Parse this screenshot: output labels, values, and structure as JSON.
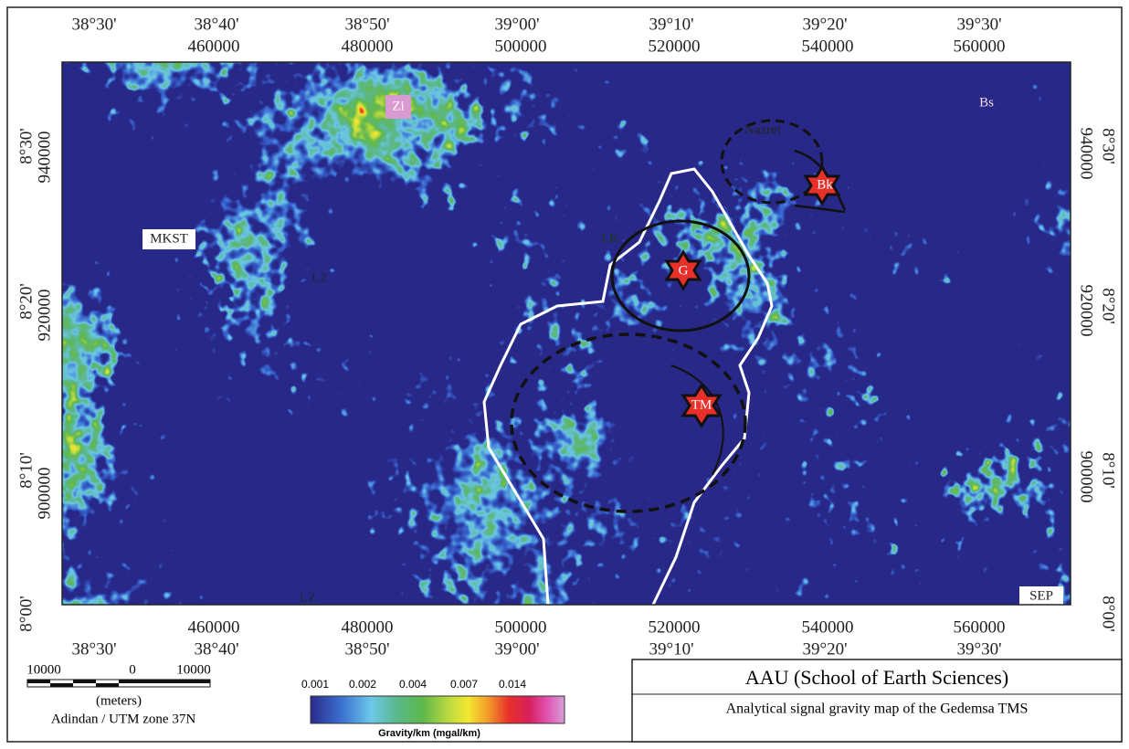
{
  "graticule": {
    "top_degrees": [
      "38°30'",
      "38°40'",
      "38°50'",
      "39°00'",
      "39°10'",
      "39°20'",
      "39°30'"
    ],
    "top_utm": [
      "460000",
      "480000",
      "500000",
      "520000",
      "540000",
      "560000"
    ],
    "bottom_utm": [
      "460000",
      "480000",
      "500000",
      "520000",
      "540000",
      "560000"
    ],
    "bottom_degrees": [
      "38°30'",
      "38°40'",
      "38°50'",
      "39°00'",
      "39°10'",
      "39°20'",
      "39°30'"
    ],
    "left": [
      "8°30'",
      "940000",
      "8°20'",
      "920000",
      "8°10'",
      "900000",
      "8°00'"
    ],
    "right": [
      "940000",
      "8°30'",
      "920000",
      "8°20'",
      "900000",
      "8°10'",
      "8°00'"
    ]
  },
  "map_labels": [
    "Zi",
    "Bs",
    "Nazret",
    "Bk",
    "MKST",
    "LK",
    "G",
    "LZ",
    "TM",
    "LZ",
    "SEP"
  ],
  "scale_bar": {
    "labels": [
      "10000",
      "0",
      "10000"
    ],
    "unit": "(meters)",
    "datum": "Adindan / UTM zone 37N"
  },
  "color_scale": {
    "ticks": [
      "0.001",
      "0.002",
      "0.004",
      "0.007",
      "0.014"
    ],
    "label": "Gravity/km (mgal/km)"
  },
  "title_block": {
    "institution": "AAU (School of Earth Sciences)",
    "caption": "Analytical signal gravity map of the Gedemsa TMS"
  }
}
